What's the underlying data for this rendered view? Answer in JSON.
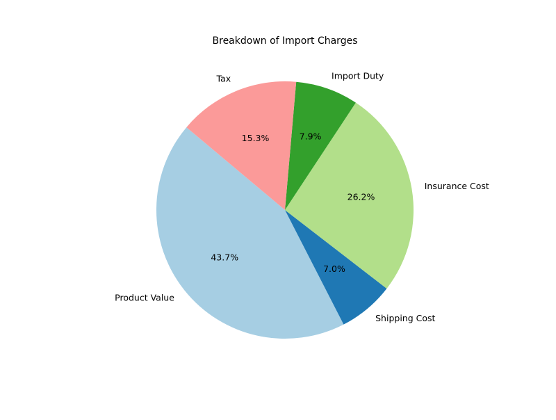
{
  "chart_data": {
    "type": "pie",
    "title": "Breakdown of Import Charges",
    "start_angle_deg": 140,
    "direction": "counterclockwise",
    "legend": "none",
    "slices": [
      {
        "label": "Product Value",
        "percent": 43.7,
        "pct_text": "43.7%",
        "color": "#a6cee3"
      },
      {
        "label": "Shipping Cost",
        "percent": 7.0,
        "pct_text": "7.0%",
        "color": "#1f78b4"
      },
      {
        "label": "Insurance Cost",
        "percent": 26.2,
        "pct_text": "26.2%",
        "color": "#b2df8a"
      },
      {
        "label": "Import Duty",
        "percent": 7.9,
        "pct_text": "7.9%",
        "color": "#33a02c"
      },
      {
        "label": "Tax",
        "percent": 15.3,
        "pct_text": "15.3%",
        "color": "#fb9a99"
      }
    ]
  }
}
